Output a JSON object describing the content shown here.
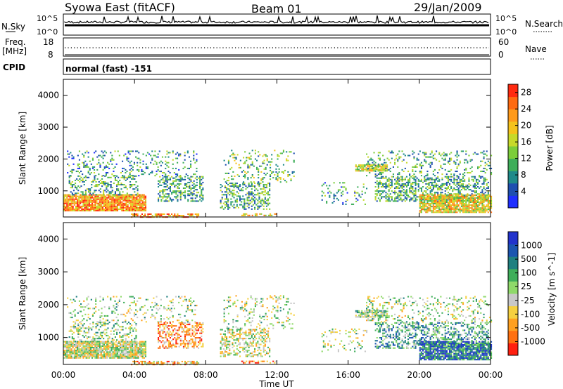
{
  "header": {
    "station": "Syowa East (fitACF)",
    "beam": "Beam 01",
    "date": "29/Jan/2009"
  },
  "status_panel": {
    "nsky_label": "N.Sky",
    "nsearch_label": "N.Search",
    "freq_label_1": "Freq.",
    "freq_label_2": "[MHz]",
    "nave_label": "Nave",
    "cpid_label": "CPID",
    "cpid_value": "normal (fast) -151",
    "noise_ticks_left": [
      "10^5",
      "10^0"
    ],
    "noise_ticks_right": [
      "10^5",
      "10^0"
    ],
    "freq_ticks": [
      "18",
      "8"
    ],
    "nave_ticks": [
      "60",
      "0"
    ]
  },
  "chart_data": [
    {
      "type": "heatmap",
      "name": "power",
      "ylabel": "Slant Range [km]",
      "xlabel": "Time UT",
      "xlim_hours": [
        0,
        24
      ],
      "ylim_km": [
        180,
        4500
      ],
      "yticks": [
        1000,
        2000,
        3000,
        4000
      ],
      "colorbar": {
        "label": "Power [dB]",
        "ticks": [
          4,
          8,
          12,
          16,
          20,
          24,
          28
        ],
        "range": [
          0,
          30
        ],
        "colors": [
          "#1f2fff",
          "#1e4fb0",
          "#1f8a8a",
          "#3fae5a",
          "#7ccd3a",
          "#c7d92a",
          "#f5c21b",
          "#ff9a1a",
          "#ff6a10",
          "#ff2a10"
        ]
      }
    },
    {
      "type": "heatmap",
      "name": "velocity",
      "ylabel": "Slant Range [km]",
      "xlabel": "Time UT",
      "xlim_hours": [
        0,
        24
      ],
      "ylim_km": [
        180,
        4500
      ],
      "yticks": [
        1000,
        2000,
        3000,
        4000
      ],
      "colorbar": {
        "label": "Velocity [m s^-1]",
        "ticks": [
          "1000",
          "500",
          "100",
          "25",
          "-25",
          "-100",
          "-500",
          "-1000"
        ],
        "colors": [
          "#2233cc",
          "#1b55b0",
          "#1f8080",
          "#3fae5a",
          "#8fd96a",
          "#c8c8c8",
          "#f5d040",
          "#ffa020",
          "#ff7010",
          "#ff2010"
        ]
      }
    }
  ],
  "x_ticks": [
    "00:00",
    "04:00",
    "08:00",
    "12:00",
    "16:00",
    "20:00",
    "00:00"
  ],
  "x_axis_label": "Time UT"
}
